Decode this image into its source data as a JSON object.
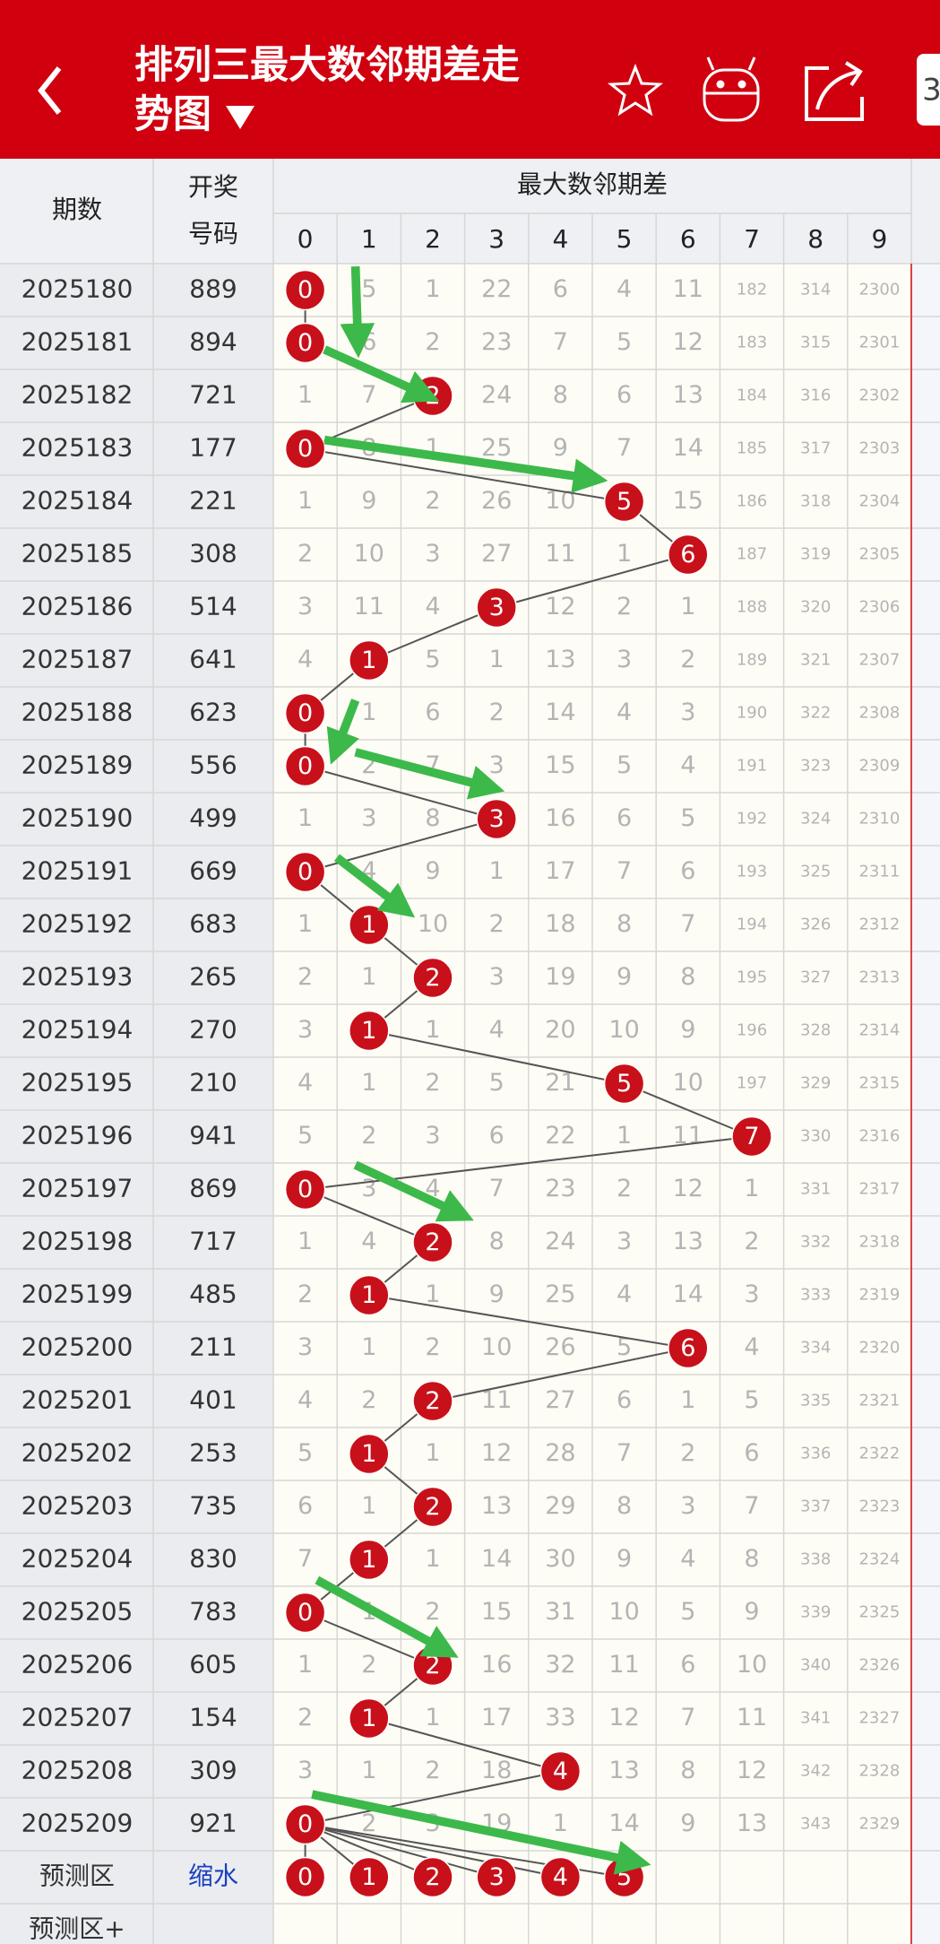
{
  "header": {
    "title": "排列三最大数邻期差走势图",
    "badge": "3"
  },
  "table": {
    "col_period": "期数",
    "col_number_1": "开奖",
    "col_number_2": "号码",
    "group_title": "最大数邻期差",
    "digits": [
      0,
      1,
      2,
      3,
      4,
      5,
      6,
      7,
      8,
      9
    ],
    "rows": [
      {
        "period": "2025180",
        "number": "889",
        "ball": 0,
        "cells": [
          0,
          5,
          1,
          22,
          6,
          4,
          11,
          182,
          314,
          2300
        ]
      },
      {
        "period": "2025181",
        "number": "894",
        "ball": 0,
        "cells": [
          0,
          6,
          2,
          23,
          7,
          5,
          12,
          183,
          315,
          2301
        ]
      },
      {
        "period": "2025182",
        "number": "721",
        "ball": 2,
        "cells": [
          1,
          7,
          2,
          24,
          8,
          6,
          13,
          184,
          316,
          2302
        ]
      },
      {
        "period": "2025183",
        "number": "177",
        "ball": 0,
        "cells": [
          0,
          8,
          1,
          25,
          9,
          7,
          14,
          185,
          317,
          2303
        ]
      },
      {
        "period": "2025184",
        "number": "221",
        "ball": 5,
        "cells": [
          1,
          9,
          2,
          26,
          10,
          5,
          15,
          186,
          318,
          2304
        ]
      },
      {
        "period": "2025185",
        "number": "308",
        "ball": 6,
        "cells": [
          2,
          10,
          3,
          27,
          11,
          1,
          6,
          187,
          319,
          2305
        ]
      },
      {
        "period": "2025186",
        "number": "514",
        "ball": 3,
        "cells": [
          3,
          11,
          4,
          3,
          12,
          2,
          1,
          188,
          320,
          2306
        ]
      },
      {
        "period": "2025187",
        "number": "641",
        "ball": 1,
        "cells": [
          4,
          1,
          5,
          1,
          13,
          3,
          2,
          189,
          321,
          2307
        ]
      },
      {
        "period": "2025188",
        "number": "623",
        "ball": 0,
        "cells": [
          0,
          1,
          6,
          2,
          14,
          4,
          3,
          190,
          322,
          2308
        ]
      },
      {
        "period": "2025189",
        "number": "556",
        "ball": 0,
        "cells": [
          0,
          2,
          7,
          3,
          15,
          5,
          4,
          191,
          323,
          2309
        ]
      },
      {
        "period": "2025190",
        "number": "499",
        "ball": 3,
        "cells": [
          1,
          3,
          8,
          3,
          16,
          6,
          5,
          192,
          324,
          2310
        ]
      },
      {
        "period": "2025191",
        "number": "669",
        "ball": 0,
        "cells": [
          0,
          4,
          9,
          1,
          17,
          7,
          6,
          193,
          325,
          2311
        ]
      },
      {
        "period": "2025192",
        "number": "683",
        "ball": 1,
        "cells": [
          1,
          1,
          10,
          2,
          18,
          8,
          7,
          194,
          326,
          2312
        ]
      },
      {
        "period": "2025193",
        "number": "265",
        "ball": 2,
        "cells": [
          2,
          1,
          2,
          3,
          19,
          9,
          8,
          195,
          327,
          2313
        ]
      },
      {
        "period": "2025194",
        "number": "270",
        "ball": 1,
        "cells": [
          3,
          1,
          1,
          4,
          20,
          10,
          9,
          196,
          328,
          2314
        ]
      },
      {
        "period": "2025195",
        "number": "210",
        "ball": 5,
        "cells": [
          4,
          1,
          2,
          5,
          21,
          5,
          10,
          197,
          329,
          2315
        ]
      },
      {
        "period": "2025196",
        "number": "941",
        "ball": 7,
        "cells": [
          5,
          2,
          3,
          6,
          22,
          1,
          11,
          7,
          330,
          2316
        ]
      },
      {
        "period": "2025197",
        "number": "869",
        "ball": 0,
        "cells": [
          0,
          3,
          4,
          7,
          23,
          2,
          12,
          1,
          331,
          2317
        ]
      },
      {
        "period": "2025198",
        "number": "717",
        "ball": 2,
        "cells": [
          1,
          4,
          2,
          8,
          24,
          3,
          13,
          2,
          332,
          2318
        ]
      },
      {
        "period": "2025199",
        "number": "485",
        "ball": 1,
        "cells": [
          2,
          1,
          1,
          9,
          25,
          4,
          14,
          3,
          333,
          2319
        ]
      },
      {
        "period": "2025200",
        "number": "211",
        "ball": 6,
        "cells": [
          3,
          1,
          2,
          10,
          26,
          5,
          6,
          4,
          334,
          2320
        ]
      },
      {
        "period": "2025201",
        "number": "401",
        "ball": 2,
        "cells": [
          4,
          2,
          2,
          11,
          27,
          6,
          1,
          5,
          335,
          2321
        ]
      },
      {
        "period": "2025202",
        "number": "253",
        "ball": 1,
        "cells": [
          5,
          1,
          1,
          12,
          28,
          7,
          2,
          6,
          336,
          2322
        ]
      },
      {
        "period": "2025203",
        "number": "735",
        "ball": 2,
        "cells": [
          6,
          1,
          2,
          13,
          29,
          8,
          3,
          7,
          337,
          2323
        ]
      },
      {
        "period": "2025204",
        "number": "830",
        "ball": 1,
        "cells": [
          7,
          1,
          1,
          14,
          30,
          9,
          4,
          8,
          338,
          2324
        ]
      },
      {
        "period": "2025205",
        "number": "783",
        "ball": 0,
        "cells": [
          0,
          1,
          2,
          15,
          31,
          10,
          5,
          9,
          339,
          2325
        ]
      },
      {
        "period": "2025206",
        "number": "605",
        "ball": 2,
        "cells": [
          1,
          2,
          2,
          16,
          32,
          11,
          6,
          10,
          340,
          2326
        ]
      },
      {
        "period": "2025207",
        "number": "154",
        "ball": 1,
        "cells": [
          2,
          1,
          1,
          17,
          33,
          12,
          7,
          11,
          341,
          2327
        ]
      },
      {
        "period": "2025208",
        "number": "309",
        "ball": 4,
        "cells": [
          3,
          1,
          2,
          18,
          4,
          13,
          8,
          12,
          342,
          2328
        ]
      },
      {
        "period": "2025209",
        "number": "921",
        "ball": 0,
        "cells": [
          0,
          2,
          3,
          19,
          1,
          14,
          9,
          13,
          343,
          2329
        ]
      }
    ],
    "prediction": {
      "label": "预测区",
      "filter": "缩水",
      "balls": [
        0,
        1,
        2,
        3,
        4,
        5
      ]
    },
    "prediction_plus": {
      "label": "预测区+"
    }
  }
}
